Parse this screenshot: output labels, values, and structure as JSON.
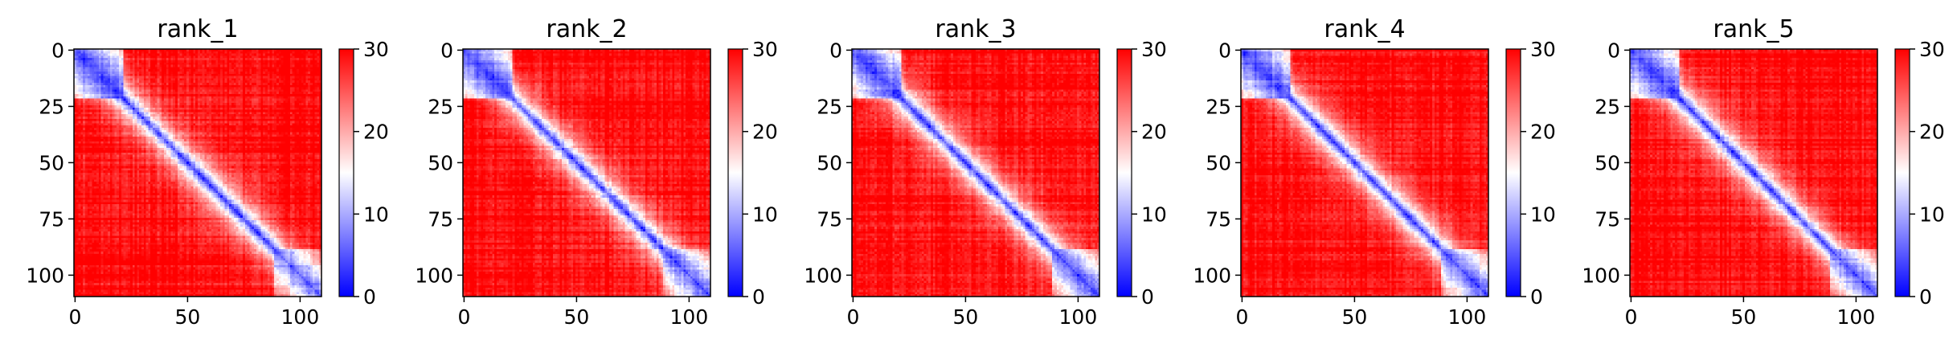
{
  "chart_data": {
    "type": "heatmap",
    "panel_count": 5,
    "matrix_size": 110,
    "colormap": [
      "#0000ff",
      "#ffffff",
      "#ff0000"
    ],
    "colormap_stops": [
      0,
      15,
      30
    ],
    "vmin": 0,
    "vmax": 30,
    "axis_ticks": [
      "0",
      "50",
      "100"
    ],
    "axis_tick_values": [
      0,
      50,
      100
    ],
    "y_ticks": [
      "0",
      "25",
      "50",
      "75",
      "100"
    ],
    "y_tick_values": [
      0,
      25,
      50,
      75,
      100
    ],
    "colorbar_ticks": [
      "0",
      "10",
      "20",
      "30"
    ],
    "colorbar_tick_values": [
      0,
      10,
      20,
      30
    ],
    "panels": [
      {
        "title": "rank_1"
      },
      {
        "title": "rank_2"
      },
      {
        "title": "rank_3"
      },
      {
        "title": "rank_4"
      },
      {
        "title": "rank_5"
      }
    ]
  }
}
